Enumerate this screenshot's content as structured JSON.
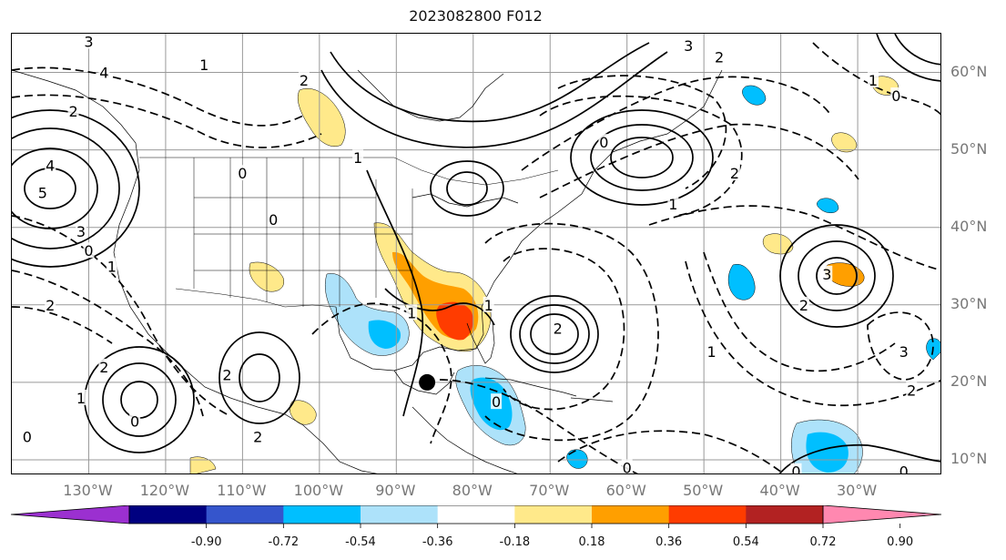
{
  "title": "2023082800 F012",
  "lat_labels": [
    {
      "text": "60°N",
      "lat": 60
    },
    {
      "text": "50°N",
      "lat": 50
    },
    {
      "text": "40°N",
      "lat": 40
    },
    {
      "text": "30°N",
      "lat": 30
    },
    {
      "text": "20°N",
      "lat": 20
    },
    {
      "text": "10°N",
      "lat": 10
    }
  ],
  "lon_labels": [
    {
      "text": "130°W",
      "lon": -130
    },
    {
      "text": "120°W",
      "lon": -120
    },
    {
      "text": "110°W",
      "lon": -110
    },
    {
      "text": "100°W",
      "lon": -100
    },
    {
      "text": "90°W",
      "lon": -90
    },
    {
      "text": "80°W",
      "lon": -80
    },
    {
      "text": "70°W",
      "lon": -70
    },
    {
      "text": "60°W",
      "lon": -60
    },
    {
      "text": "50°W",
      "lon": -50
    },
    {
      "text": "40°W",
      "lon": -40
    },
    {
      "text": "30°W",
      "lon": -30
    }
  ],
  "map_extent": {
    "lon_min": -140,
    "lon_max": -19,
    "lat_min": 8,
    "lat_max": 65
  },
  "colorbar": {
    "colors": [
      "#9b30d0",
      "#000080",
      "#3555cc",
      "#00bfff",
      "#ade2fa",
      "#ffffff",
      "#ffe98a",
      "#ff9f00",
      "#ff3c00",
      "#b22222",
      "#ff88b0"
    ],
    "ticks": [
      "-0.90",
      "-0.72",
      "-0.54",
      "-0.36",
      "-0.18",
      "0.18",
      "0.36",
      "0.54",
      "0.72",
      "0.90"
    ]
  },
  "contour_labels": [
    {
      "text": "3",
      "lon": -52,
      "lat": 63.5
    },
    {
      "text": "2",
      "lon": -48,
      "lat": 62
    },
    {
      "text": "1",
      "lon": -115,
      "lat": 61
    },
    {
      "text": "3",
      "lon": -130,
      "lat": 64
    },
    {
      "text": "4",
      "lon": -128,
      "lat": 60
    },
    {
      "text": "2",
      "lon": -132,
      "lat": 55
    },
    {
      "text": "4",
      "lon": -135,
      "lat": 48
    },
    {
      "text": "5",
      "lon": -136,
      "lat": 44.5
    },
    {
      "text": "3",
      "lon": -131,
      "lat": 39.5
    },
    {
      "text": "0",
      "lon": -130,
      "lat": 37
    },
    {
      "text": "1",
      "lon": -127,
      "lat": 35
    },
    {
      "text": "2",
      "lon": -135,
      "lat": 30
    },
    {
      "text": "0",
      "lon": -110,
      "lat": 47
    },
    {
      "text": "0",
      "lon": -106,
      "lat": 41
    },
    {
      "text": "2",
      "lon": -102,
      "lat": 59
    },
    {
      "text": "1",
      "lon": -95,
      "lat": 49
    },
    {
      "text": "1",
      "lon": -88,
      "lat": 29
    },
    {
      "text": "1",
      "lon": -78,
      "lat": 30
    },
    {
      "text": "2",
      "lon": -112,
      "lat": 21
    },
    {
      "text": "2",
      "lon": -128,
      "lat": 22
    },
    {
      "text": "1",
      "lon": -131,
      "lat": 18
    },
    {
      "text": "0",
      "lon": -124,
      "lat": 15
    },
    {
      "text": "0",
      "lon": -138,
      "lat": 13
    },
    {
      "text": "2",
      "lon": -108,
      "lat": 13
    },
    {
      "text": "2",
      "lon": -69,
      "lat": 27
    },
    {
      "text": "0",
      "lon": -63,
      "lat": 51
    },
    {
      "text": "1",
      "lon": -54,
      "lat": 43
    },
    {
      "text": "2",
      "lon": -46,
      "lat": 47
    },
    {
      "text": "0",
      "lon": -77,
      "lat": 17.5
    },
    {
      "text": "1",
      "lon": -49,
      "lat": 24
    },
    {
      "text": "3",
      "lon": -34,
      "lat": 34
    },
    {
      "text": "2",
      "lon": -37,
      "lat": 30
    },
    {
      "text": "3",
      "lon": -24,
      "lat": 24
    },
    {
      "text": "2",
      "lon": -23,
      "lat": 19
    },
    {
      "text": "1",
      "lon": -28,
      "lat": 59
    },
    {
      "text": "0",
      "lon": -25,
      "lat": 57
    },
    {
      "text": "0",
      "lon": -60,
      "lat": 9
    },
    {
      "text": "0",
      "lon": -38,
      "lat": 8.5
    },
    {
      "text": "0",
      "lon": -24,
      "lat": 8.5
    }
  ],
  "storm_marker": {
    "lon": -86,
    "lat": 20
  }
}
